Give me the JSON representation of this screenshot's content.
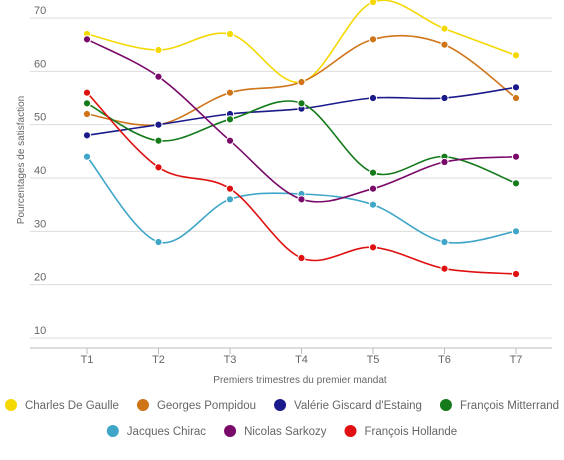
{
  "chart_data": {
    "type": "line",
    "x": [
      "T1",
      "T2",
      "T3",
      "T4",
      "T5",
      "T6",
      "T7"
    ],
    "xlabel": "Premiers trimestres du premier mandat",
    "ylabel": "Pourcentages de satisfaction",
    "ylim": [
      10,
      70
    ],
    "yticks": [
      10,
      20,
      30,
      40,
      50,
      60,
      70
    ],
    "grid": "horizontal",
    "legend": "bottom",
    "series": [
      {
        "name": "Charles De Gaulle",
        "color": "#f5d800",
        "values": [
          67,
          64,
          67,
          58,
          73,
          68,
          63
        ]
      },
      {
        "name": "Georges Pompidou",
        "color": "#d07418",
        "values": [
          52,
          50,
          56,
          58,
          66,
          65,
          55
        ]
      },
      {
        "name": "Valérie Giscard d'Estaing",
        "color": "#1a1a8a",
        "values": [
          48,
          50,
          52,
          53,
          55,
          55,
          57
        ]
      },
      {
        "name": "François Mitterrand",
        "color": "#157a1a",
        "values": [
          54,
          47,
          51,
          54,
          41,
          44,
          39
        ]
      },
      {
        "name": "Jacques Chirac",
        "color": "#3fa6c8",
        "values": [
          44,
          28,
          36,
          37,
          35,
          28,
          30
        ]
      },
      {
        "name": "Nicolas Sarkozy",
        "color": "#7a0a6a",
        "values": [
          66,
          59,
          47,
          36,
          38,
          43,
          44
        ]
      },
      {
        "name": "François Hollande",
        "color": "#e01010",
        "values": [
          56,
          42,
          38,
          25,
          27,
          23,
          22
        ]
      }
    ]
  }
}
